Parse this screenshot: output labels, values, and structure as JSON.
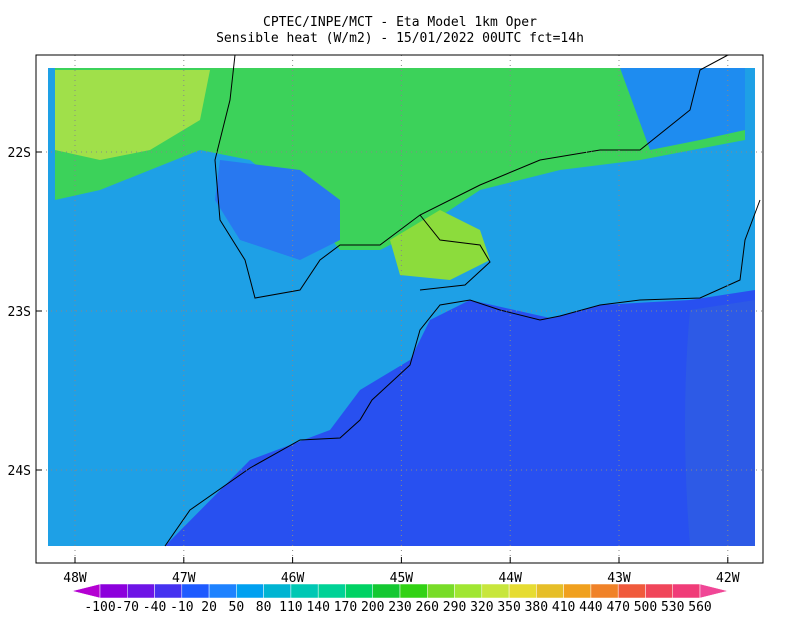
{
  "title": [
    "CPTEC/INPE/MCT -  Eta Model 1km Oper",
    "Sensible heat (W/m2) - 15/01/2022 00UTC fct=14h"
  ],
  "map": {
    "lat_ticks": [
      "22S",
      "23S",
      "24S"
    ],
    "lon_ticks": [
      "48W",
      "47W",
      "46W",
      "45W",
      "44W",
      "43W",
      "42W"
    ]
  },
  "colorbar": {
    "labels": [
      -100,
      -70,
      -40,
      -10,
      20,
      50,
      80,
      110,
      140,
      170,
      200,
      230,
      260,
      290,
      320,
      350,
      380,
      410,
      440,
      470,
      500,
      530,
      560
    ],
    "colors": [
      "#b400d2",
      "#8c00dc",
      "#6e14e6",
      "#4632f0",
      "#1e5aff",
      "#1e82ff",
      "#00a0f0",
      "#00b4d2",
      "#00c8b4",
      "#00d296",
      "#00d264",
      "#14c832",
      "#32d214",
      "#78dc28",
      "#a0e632",
      "#c8e63c",
      "#e6dc32",
      "#e6be28",
      "#f0a01e",
      "#f08228",
      "#f05a3c",
      "#f0465a",
      "#f03c78",
      "#f04696"
    ]
  }
}
